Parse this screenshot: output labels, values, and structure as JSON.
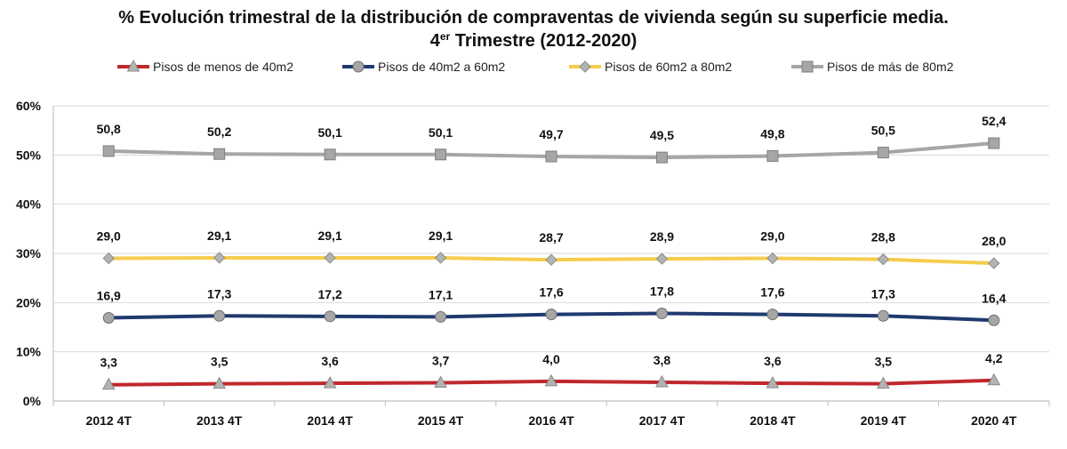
{
  "chart_data": {
    "type": "line",
    "title": "% Evolución trimestral de la distribución de compraventas de vivienda según su superficie media.",
    "subtitle_prefix": "4",
    "subtitle_sup": "er",
    "subtitle_rest": " Trimestre (2012-2020)",
    "categories": [
      "2012 4T",
      "2013 4T",
      "2014 4T",
      "2015 4T",
      "2016 4T",
      "2017 4T",
      "2018 4T",
      "2019 4T",
      "2020 4T"
    ],
    "yticks": [
      "0%",
      "10%",
      "20%",
      "30%",
      "40%",
      "50%",
      "60%"
    ],
    "ylim": [
      0,
      60
    ],
    "legend_position": "top",
    "series": [
      {
        "name": "Pisos de menos de 40m2",
        "color": "#c0282d",
        "marker": "triangle",
        "values": [
          3.3,
          3.5,
          3.6,
          3.7,
          4.0,
          3.8,
          3.6,
          3.5,
          4.2
        ],
        "labels": [
          "3,3",
          "3,5",
          "3,6",
          "3,7",
          "4,0",
          "3,8",
          "3,6",
          "3,5",
          "4,2"
        ]
      },
      {
        "name": "Pisos de 40m2 a 60m2",
        "color": "#1f3a6e",
        "marker": "circle",
        "values": [
          16.9,
          17.3,
          17.2,
          17.1,
          17.6,
          17.8,
          17.6,
          17.3,
          16.4
        ],
        "labels": [
          "16,9",
          "17,3",
          "17,2",
          "17,1",
          "17,6",
          "17,8",
          "17,6",
          "17,3",
          "16,4"
        ]
      },
      {
        "name": "Pisos de 60m2 a 80m2",
        "color": "#f5cc4c",
        "marker": "diamond",
        "values": [
          29.0,
          29.1,
          29.1,
          29.1,
          28.7,
          28.9,
          29.0,
          28.8,
          28.0
        ],
        "labels": [
          "29,0",
          "29,1",
          "29,1",
          "29,1",
          "28,7",
          "28,9",
          "29,0",
          "28,8",
          "28,0"
        ]
      },
      {
        "name": "Pisos de más de 80m2",
        "color": "#a6a6a6",
        "marker": "square",
        "values": [
          50.8,
          50.2,
          50.1,
          50.1,
          49.7,
          49.5,
          49.8,
          50.5,
          52.4
        ],
        "labels": [
          "50,8",
          "50,2",
          "50,1",
          "50,1",
          "49,7",
          "49,5",
          "49,8",
          "50,5",
          "52,4"
        ]
      }
    ]
  }
}
